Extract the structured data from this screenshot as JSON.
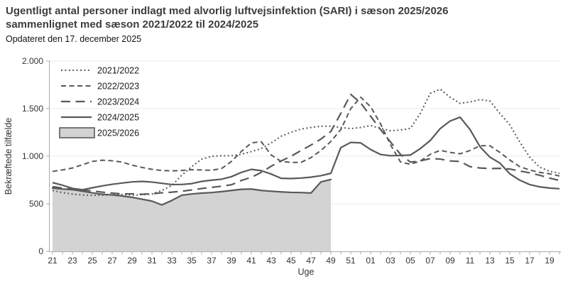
{
  "header": {
    "title_line1": "Ugentligt antal personer indlagt med alvorlig luftvejsinfektion (SARI) i sæson 2025/2026",
    "title_line2": "sammenlignet med sæson 2021/2022 til 2024/2025",
    "subtitle": "Opdateret den 17. december 2025"
  },
  "chart_data": {
    "type": "line",
    "title": "Ugentligt antal personer indlagt med alvorlig luftvejsinfektion (SARI) i sæson 2025/2026 sammenlignet med sæson 2021/2022 til 2024/2025",
    "xlabel": "Uge",
    "ylabel": "Bekræftede tilfælde",
    "ylim": [
      0,
      2000
    ],
    "ytick_values": [
      0,
      500,
      1000,
      1500,
      2000
    ],
    "ytick_labels": [
      "0",
      "500",
      "1.000",
      "1.500",
      "2.000"
    ],
    "x_categories": [
      "21",
      "22",
      "23",
      "24",
      "25",
      "26",
      "27",
      "28",
      "29",
      "30",
      "31",
      "32",
      "33",
      "34",
      "35",
      "36",
      "37",
      "38",
      "39",
      "40",
      "41",
      "42",
      "43",
      "44",
      "45",
      "46",
      "47",
      "48",
      "49",
      "50",
      "51",
      "52",
      "01",
      "02",
      "03",
      "04",
      "05",
      "06",
      "07",
      "08",
      "09",
      "10",
      "11",
      "12",
      "13",
      "14",
      "15",
      "16",
      "17",
      "18",
      "19",
      "20"
    ],
    "xtick_label_every": 2,
    "grid": "horizontal",
    "legend_position": "inside-top-left",
    "series": [
      {
        "name": "2021/2022",
        "style": "dotted",
        "values": [
          640,
          618,
          602,
          593,
          588,
          590,
          594,
          598,
          591,
          595,
          602,
          640,
          692,
          800,
          890,
          968,
          1000,
          1005,
          1005,
          1020,
          1048,
          1080,
          1140,
          1210,
          1252,
          1285,
          1302,
          1315,
          1315,
          1302,
          1290,
          1302,
          1322,
          1292,
          1268,
          1275,
          1292,
          1450,
          1660,
          1705,
          1620,
          1555,
          1570,
          1595,
          1580,
          1450,
          1330,
          1150,
          990,
          885,
          842,
          820
        ]
      },
      {
        "name": "2022/2023",
        "style": "dashed",
        "values": [
          840,
          856,
          876,
          910,
          945,
          958,
          952,
          938,
          906,
          882,
          862,
          850,
          846,
          850,
          858,
          855,
          852,
          870,
          945,
          1050,
          1140,
          1152,
          1012,
          945,
          935,
          935,
          985,
          1060,
          1155,
          1280,
          1500,
          1620,
          1520,
          1340,
          1120,
          940,
          915,
          950,
          1020,
          1062,
          1040,
          1025,
          1060,
          1110,
          1110,
          1040,
          960,
          890,
          855,
          830,
          815,
          792
        ]
      },
      {
        "name": "2023/2024",
        "style": "longdash",
        "values": [
          680,
          665,
          652,
          645,
          635,
          622,
          612,
          603,
          605,
          600,
          605,
          615,
          622,
          632,
          645,
          660,
          672,
          685,
          700,
          745,
          778,
          830,
          895,
          950,
          1000,
          1060,
          1117,
          1180,
          1260,
          1450,
          1650,
          1560,
          1420,
          1280,
          1150,
          1020,
          938,
          950,
          975,
          970,
          950,
          945,
          890,
          876,
          870,
          872,
          865,
          845,
          825,
          800,
          770,
          745
        ]
      },
      {
        "name": "2024/2025",
        "style": "solid",
        "values": [
          722,
          695,
          662,
          648,
          668,
          688,
          705,
          718,
          730,
          735,
          728,
          715,
          702,
          703,
          712,
          735,
          748,
          758,
          785,
          830,
          862,
          848,
          812,
          768,
          765,
          770,
          780,
          795,
          820,
          1090,
          1145,
          1140,
          1070,
          1018,
          1005,
          1008,
          1012,
          1080,
          1165,
          1290,
          1370,
          1410,
          1280,
          1100,
          990,
          928,
          815,
          748,
          702,
          678,
          665,
          658
        ]
      },
      {
        "name": "2025/2026",
        "style": "area",
        "values": [
          665,
          655,
          648,
          632,
          615,
          600,
          593,
          582,
          568,
          548,
          528,
          488,
          535,
          590,
          603,
          612,
          618,
          628,
          640,
          652,
          655,
          640,
          632,
          625,
          620,
          618,
          613,
          730,
          755
        ]
      }
    ],
    "colors": {
      "line": "#595959",
      "area_fill": "#d3d3d3",
      "grid": "#ebebeb",
      "axis": "#ababab",
      "text": "#333333"
    }
  }
}
